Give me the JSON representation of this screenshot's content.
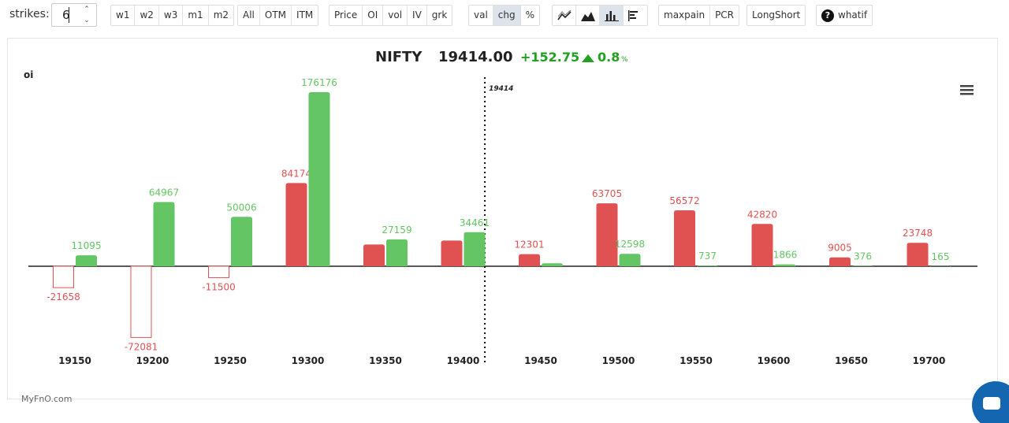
{
  "toolbar": {
    "strikes_label": "strikes:",
    "strikes_value": "6",
    "expiry_buttons": [
      "w1",
      "w2",
      "w3",
      "m1",
      "m2"
    ],
    "moneyness_buttons": [
      "All",
      "OTM",
      "ITM"
    ],
    "metric_buttons": [
      "Price",
      "OI",
      "vol",
      "IV",
      "grk"
    ],
    "mode_buttons": [
      "val",
      "chg",
      "%"
    ],
    "mode_active": "chg",
    "chart_type_icons": [
      "line-chart-icon",
      "area-chart-icon",
      "bar-chart-icon",
      "horizontal-bar-chart-icon"
    ],
    "chart_type_active": "bar-chart-icon",
    "analysis_buttons": [
      "maxpain",
      "PCR"
    ],
    "longshort_label": "LongShort",
    "whatif_label": "whatif",
    "whatif_icon": "question-circle-icon"
  },
  "header": {
    "symbol": "NIFTY",
    "price": "19414.00",
    "change": "+152.75",
    "change_pct": "0.8",
    "change_pct_unit": "%",
    "up_icon": "triangle-up-icon"
  },
  "menu_icon": "hamburger-menu-icon",
  "brand": "MyFnO.com",
  "chat_icon": "chat-bubble-icon",
  "colors": {
    "call_red": "#e05252",
    "put_green": "#63c563",
    "change_green": "#22a022",
    "axis": "#222222",
    "tab_active": "#dde3ea"
  },
  "chart_data": {
    "type": "bar",
    "title": "NIFTY",
    "ylabel": "oi",
    "xlabel": "",
    "categories": [
      "19150",
      "19200",
      "19250",
      "19300",
      "19350",
      "19400",
      "19450",
      "19500",
      "19550",
      "19600",
      "19650",
      "19700"
    ],
    "series": [
      {
        "color": "#e05252",
        "values": [
          -21658,
          -72081,
          -11500,
          84174,
          22000,
          26000,
          12301,
          63705,
          56572,
          42820,
          9005,
          23748
        ],
        "labels": [
          "-21658",
          "-72081",
          "-11500",
          "84174",
          "",
          "",
          "12301",
          "63705",
          "56572",
          "42820",
          "9005",
          "23748"
        ]
      },
      {
        "color": "#63c563",
        "values": [
          11095,
          64967,
          50006,
          176176,
          27159,
          34461,
          3000,
          12598,
          737,
          1866,
          376,
          165
        ],
        "labels": [
          "11095",
          "64967",
          "50006",
          "176176",
          "27159",
          "34461",
          "",
          "12598",
          "737",
          "1866",
          "376",
          "165"
        ]
      }
    ],
    "spot_value": 19414,
    "spot_label": "19414",
    "ylim": [
      -80000,
      185000
    ],
    "grid": false,
    "legend": "none"
  }
}
